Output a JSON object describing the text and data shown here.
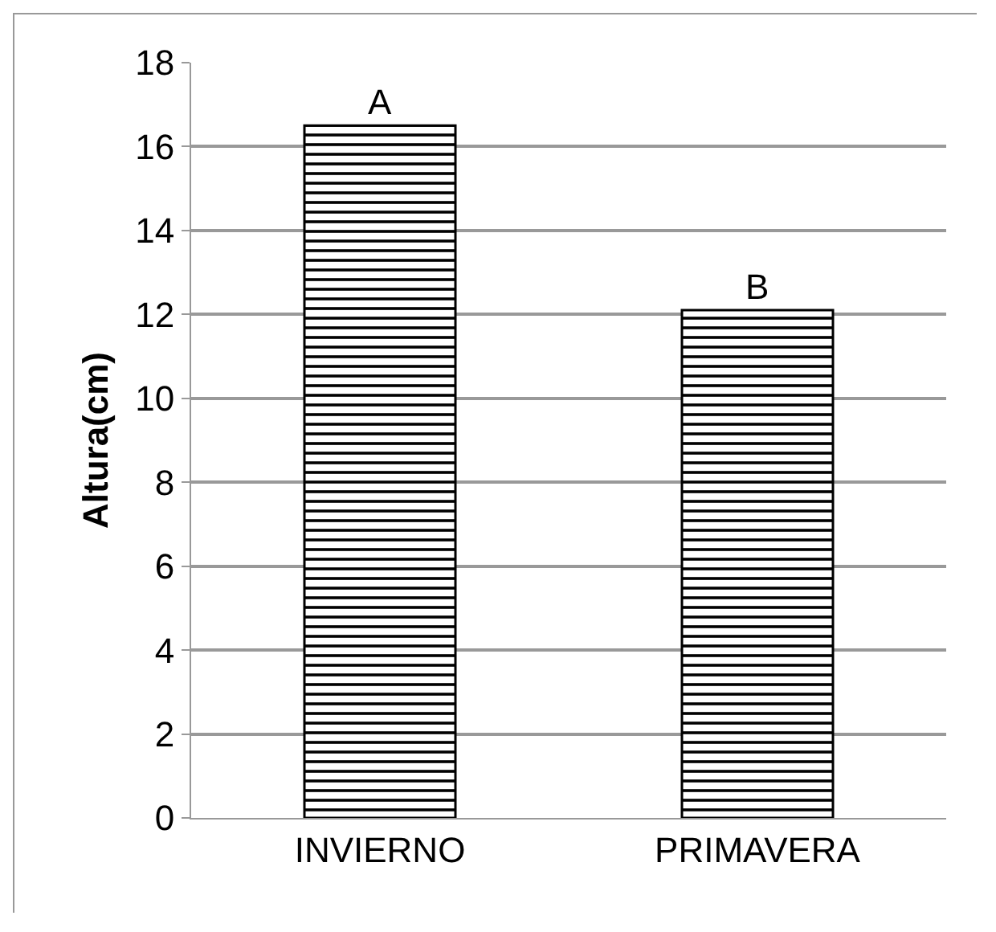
{
  "chart_data": {
    "type": "bar",
    "ylabel": "Altura(cm)",
    "categories": [
      "INVIERNO",
      "PRIMAVERA"
    ],
    "values": [
      16.5,
      12.1
    ],
    "color": "#000000",
    "ylim": [
      0,
      18
    ],
    "yticks": [
      0,
      2,
      4,
      6,
      8,
      10,
      12,
      14,
      16,
      18
    ],
    "grid": "y",
    "annotations": [
      {
        "text": "A",
        "x": "INVIERNO",
        "y": 16.5
      },
      {
        "text": "B",
        "x": "PRIMAVERA",
        "y": 12.1
      }
    ]
  }
}
